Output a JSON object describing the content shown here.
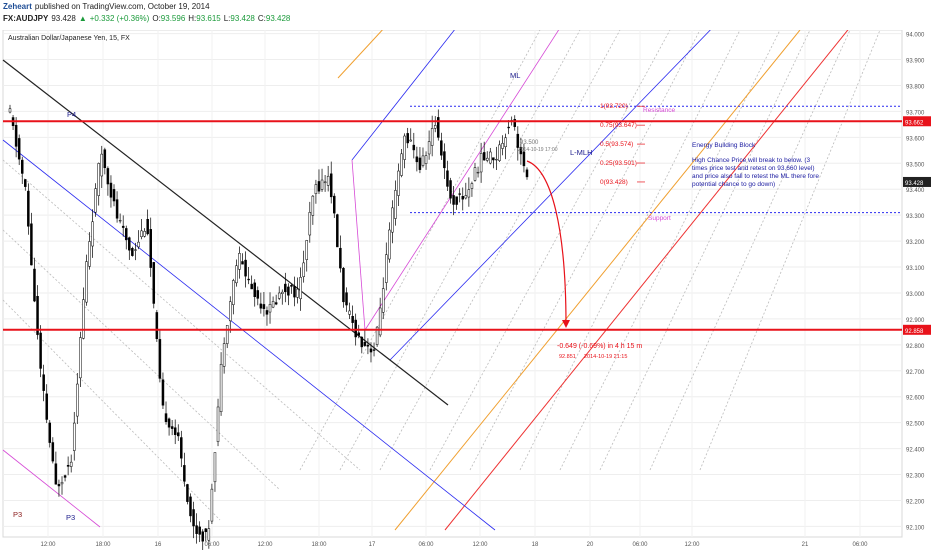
{
  "header": {
    "author": "Zeheart",
    "published": "published on TradingView.com, October 19, 2014",
    "symbol": "FX:AUDJPY",
    "last": "93.428",
    "change_arrow": "▲",
    "change": "+0.332 (+0.36%)",
    "o_label": "O:",
    "o_value": "93.596",
    "h_label": "H:",
    "h_value": "93.615",
    "l_label": "L:",
    "l_value": "93.428",
    "c_label": "C:",
    "c_value": "93.428"
  },
  "chart_data": {
    "type": "candlestick",
    "title": "Australian Dollar/Japanese Yen, 15, FX",
    "ylim": [
      92.09,
      94.01
    ],
    "y_ticks": [
      "94.000",
      "93.900",
      "93.800",
      "93.700",
      "93.600",
      "93.500",
      "93.400",
      "93.300",
      "93.200",
      "93.100",
      "93.000",
      "92.900",
      "92.800",
      "92.700",
      "92.600",
      "92.500",
      "92.400",
      "92.300",
      "92.200",
      "92.100"
    ],
    "x_ticks": [
      "12:00",
      "18:00",
      "16",
      "06:00",
      "12:00",
      "18:00",
      "17",
      "06:00",
      "12:00",
      "18",
      "20",
      "06:00",
      "12:00",
      "21",
      "06:00"
    ],
    "price_path": [
      93.69,
      93.4,
      92.7,
      92.25,
      92.35,
      93.1,
      93.55,
      93.3,
      93.15,
      93.28,
      92.55,
      92.45,
      92.1,
      92.05,
      92.8,
      93.15,
      93.0,
      92.93,
      93.02,
      93.0,
      93.4,
      93.45,
      92.95,
      92.82,
      92.78,
      93.25,
      93.62,
      93.48,
      93.66,
      93.35,
      93.38,
      93.52,
      93.53,
      93.68,
      93.428
    ],
    "horizontal_levels": [
      {
        "value": 93.662,
        "label": "93.662",
        "color": "#e8121a"
      },
      {
        "value": 92.858,
        "label": "92.858",
        "color": "#e8121a"
      },
      {
        "value": 93.72,
        "label": "Resistance",
        "color": "#2a2af0"
      },
      {
        "value": 93.31,
        "label": "Support",
        "color": "#2a2af0"
      }
    ],
    "last_price_label": "93.428",
    "fib_levels": [
      {
        "label": "1(93.720)",
        "value": 93.72
      },
      {
        "label": "0.75(93.647)",
        "value": 93.647
      },
      {
        "label": "0.5(93.574)",
        "value": 93.574
      },
      {
        "label": "0.25(93.501)",
        "value": 93.501
      },
      {
        "label": "0(93.428)",
        "value": 93.428
      }
    ],
    "labels": {
      "p4": "P4",
      "p3_a": "P3",
      "p3_b": "P3",
      "ml": "ML",
      "lmlh": "L-MLH",
      "resistance": "Resistance",
      "support": "Support",
      "crosshair_price": "93.500",
      "crosshair_time": "2014-10-19 17:00"
    },
    "annotation": {
      "title": "Energy Building Block",
      "line1": "High Chance Price will break to below. (3",
      "line2": "times price test and retest on 93.660 level)",
      "line3": "and price also fall to retest the ML there fore",
      "line4": "potential chance to go down)"
    },
    "measure": {
      "main": "-0.649 (-0.69%) in 4 h 15 m",
      "price": "92.851",
      "time": "2014-10-19  21:15"
    },
    "colors": {
      "level_red": "#e8121a",
      "pitchfork_blue": "#2a2af0",
      "pitchfork_magenta": "#d64ad6",
      "parallel_orange": "#f0a030",
      "parallel_red": "#ee3333",
      "trend_black": "#222222",
      "candle": "#000000"
    }
  }
}
